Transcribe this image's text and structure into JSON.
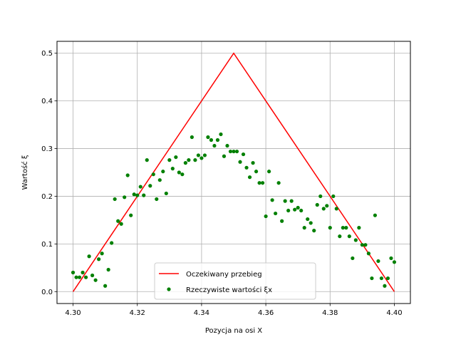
{
  "chart_data": {
    "type": "line",
    "xlabel": "Pozycja na osi X",
    "ylabel": "Wartość ξ",
    "xlim": [
      4.295,
      4.405
    ],
    "ylim": [
      -0.025,
      0.525
    ],
    "xticks": [
      "4.30",
      "4.32",
      "4.34",
      "4.36",
      "4.38",
      "4.40"
    ],
    "yticks": [
      "0.0",
      "0.1",
      "0.2",
      "0.3",
      "0.4",
      "0.5"
    ],
    "grid": true,
    "legend_position": "lower center",
    "series": [
      {
        "name": "Oczekiwany przebieg",
        "kind": "line",
        "color": "#ff0000",
        "x": [
          4.3,
          4.35,
          4.4
        ],
        "y": [
          0.0,
          0.5,
          0.0
        ]
      },
      {
        "name": "Rzeczywiste wartości ξx",
        "kind": "scatter",
        "color": "#008000",
        "x": [
          4.3,
          4.301,
          4.302,
          4.303,
          4.304,
          4.305,
          4.306,
          4.307,
          4.308,
          4.309,
          4.31,
          4.311,
          4.312,
          4.313,
          4.314,
          4.315,
          4.316,
          4.317,
          4.318,
          4.319,
          4.32,
          4.321,
          4.322,
          4.323,
          4.324,
          4.325,
          4.326,
          4.327,
          4.328,
          4.329,
          4.33,
          4.331,
          4.332,
          4.333,
          4.334,
          4.335,
          4.336,
          4.337,
          4.338,
          4.339,
          4.34,
          4.341,
          4.342,
          4.343,
          4.344,
          4.345,
          4.346,
          4.347,
          4.348,
          4.349,
          4.35,
          4.351,
          4.352,
          4.353,
          4.354,
          4.355,
          4.356,
          4.357,
          4.358,
          4.359,
          4.36,
          4.361,
          4.362,
          4.363,
          4.364,
          4.365,
          4.366,
          4.367,
          4.368,
          4.369,
          4.37,
          4.371,
          4.372,
          4.373,
          4.374,
          4.375,
          4.376,
          4.377,
          4.378,
          4.379,
          4.38,
          4.381,
          4.382,
          4.383,
          4.384,
          4.385,
          4.386,
          4.387,
          4.388,
          4.389,
          4.39,
          4.391,
          4.392,
          4.393,
          4.394,
          4.395,
          4.396,
          4.397,
          4.398,
          4.399,
          4.4
        ],
        "y": [
          0.04,
          0.03,
          0.03,
          0.04,
          0.03,
          0.074,
          0.034,
          0.024,
          0.068,
          0.08,
          0.012,
          0.046,
          0.102,
          0.194,
          0.148,
          0.142,
          0.198,
          0.244,
          0.16,
          0.204,
          0.202,
          0.22,
          0.202,
          0.276,
          0.222,
          0.246,
          0.194,
          0.234,
          0.252,
          0.206,
          0.276,
          0.258,
          0.282,
          0.25,
          0.246,
          0.27,
          0.276,
          0.324,
          0.276,
          0.286,
          0.28,
          0.286,
          0.324,
          0.318,
          0.306,
          0.318,
          0.33,
          0.284,
          0.306,
          0.294,
          0.294,
          0.294,
          0.272,
          0.288,
          0.26,
          0.24,
          0.27,
          0.252,
          0.228,
          0.228,
          0.158,
          0.252,
          0.192,
          0.164,
          0.228,
          0.148,
          0.19,
          0.17,
          0.19,
          0.172,
          0.176,
          0.17,
          0.134,
          0.152,
          0.144,
          0.128,
          0.182,
          0.2,
          0.174,
          0.18,
          0.134,
          0.2,
          0.174,
          0.116,
          0.134,
          0.134,
          0.116,
          0.07,
          0.108,
          0.134,
          0.098,
          0.098,
          0.08,
          0.028,
          0.16,
          0.064,
          0.028,
          0.012,
          0.028,
          0.07,
          0.062
        ]
      }
    ]
  }
}
